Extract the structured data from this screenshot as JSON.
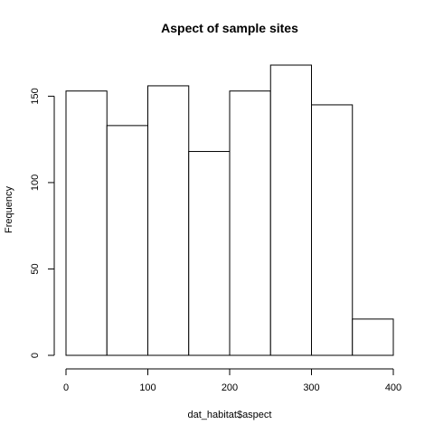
{
  "chart_data": {
    "type": "bar",
    "title": "Aspect of sample sites",
    "xlabel": "dat_habitat$aspect",
    "ylabel": "Frequency",
    "bin_edges": [
      0,
      50,
      100,
      150,
      200,
      250,
      300,
      350,
      400
    ],
    "values": [
      153,
      133,
      156,
      118,
      153,
      168,
      145,
      21
    ],
    "xlim": [
      0,
      400
    ],
    "ylim": [
      0,
      168
    ],
    "x_ticks": [
      0,
      100,
      200,
      300,
      400
    ],
    "y_ticks": [
      0,
      50,
      100,
      150
    ],
    "bar_fill": "#ffffff",
    "bar_stroke": "#000000",
    "grid": false,
    "legend": "none"
  }
}
